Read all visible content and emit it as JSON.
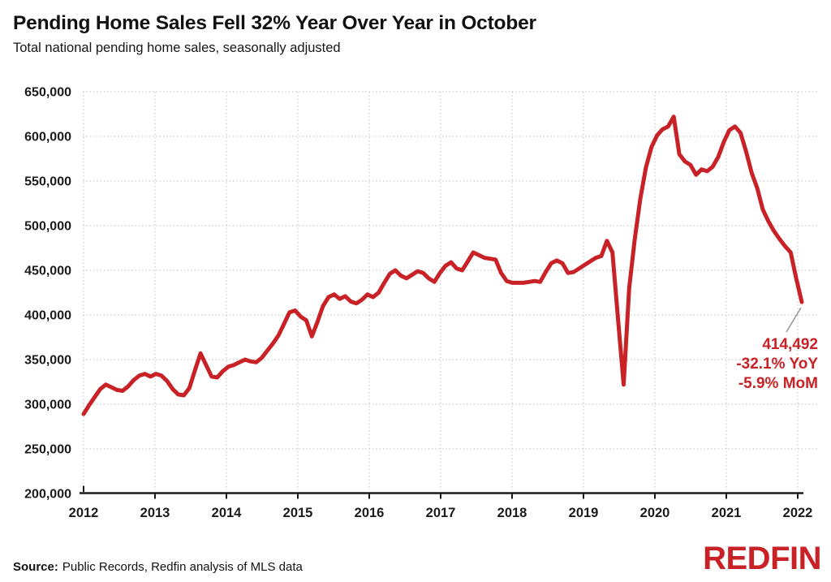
{
  "title": "Pending Home Sales Fell 32% Year Over Year in October",
  "subtitle": "Total national pending home sales, seasonally adjusted",
  "annotation": {
    "value": "414,492",
    "yoy": "-32.1% YoY",
    "mom": "-5.9% MoM"
  },
  "source": {
    "label": "Source:",
    "text": "Public Records, Redfin analysis of MLS data"
  },
  "logo_text": "REDFIN",
  "colors": {
    "accent_red": "#C82126",
    "grid": "#cbcbcb",
    "axis": "#1b1b1b",
    "leader_line": "#9a9a9a",
    "text": "#111111"
  },
  "chart_data": {
    "type": "line",
    "title": "Pending Home Sales Fell 32% Year Over Year in October",
    "subtitle": "Total national pending home sales, seasonally adjusted",
    "series_name": "Total national pending home sales, seasonally adjusted",
    "frequency": "monthly",
    "start_month": "2012-01",
    "end_month": "2022-10",
    "x_ticks": [
      2012,
      2013,
      2014,
      2015,
      2016,
      2017,
      2018,
      2019,
      2020,
      2021,
      2022
    ],
    "y_ticks": [
      650000,
      600000,
      550000,
      500000,
      450000,
      400000,
      350000,
      300000,
      250000,
      200000
    ],
    "ylim": [
      200000,
      650000
    ],
    "grid": "dotted",
    "legend": "none",
    "values": [
      289000,
      299000,
      308000,
      317000,
      322000,
      319000,
      316000,
      315000,
      320000,
      327000,
      332000,
      334000,
      331000,
      334000,
      332000,
      326000,
      317000,
      311000,
      310000,
      318000,
      338000,
      357000,
      344000,
      331000,
      330000,
      337000,
      342000,
      344000,
      347000,
      350000,
      348000,
      347000,
      352000,
      360000,
      368000,
      377000,
      390000,
      403000,
      405000,
      398000,
      394000,
      376000,
      392000,
      410000,
      420000,
      423000,
      418000,
      421000,
      415000,
      413000,
      417000,
      423000,
      420000,
      425000,
      436000,
      446000,
      450000,
      444000,
      441000,
      445000,
      449000,
      447000,
      441000,
      437000,
      447000,
      455000,
      459000,
      452000,
      450000,
      460000,
      470000,
      467000,
      464000,
      463000,
      462000,
      447000,
      438000,
      436000,
      436000,
      436000,
      437000,
      438000,
      437000,
      448000,
      458000,
      461000,
      458000,
      447000,
      448000,
      452000,
      456000,
      460000,
      464000,
      466000,
      483000,
      470000,
      395000,
      322000,
      430000,
      485000,
      530000,
      565000,
      588000,
      601000,
      608000,
      611000,
      622000,
      580000,
      572000,
      568000,
      557000,
      563000,
      561000,
      566000,
      577000,
      594000,
      607000,
      611000,
      604000,
      583000,
      559000,
      542000,
      518000,
      505000,
      494000,
      485000,
      477000,
      470000,
      441000,
      414492
    ],
    "last_point": {
      "label": "414,492",
      "value": 414492,
      "yoy_pct": -32.1,
      "mom_pct": -5.9
    }
  }
}
